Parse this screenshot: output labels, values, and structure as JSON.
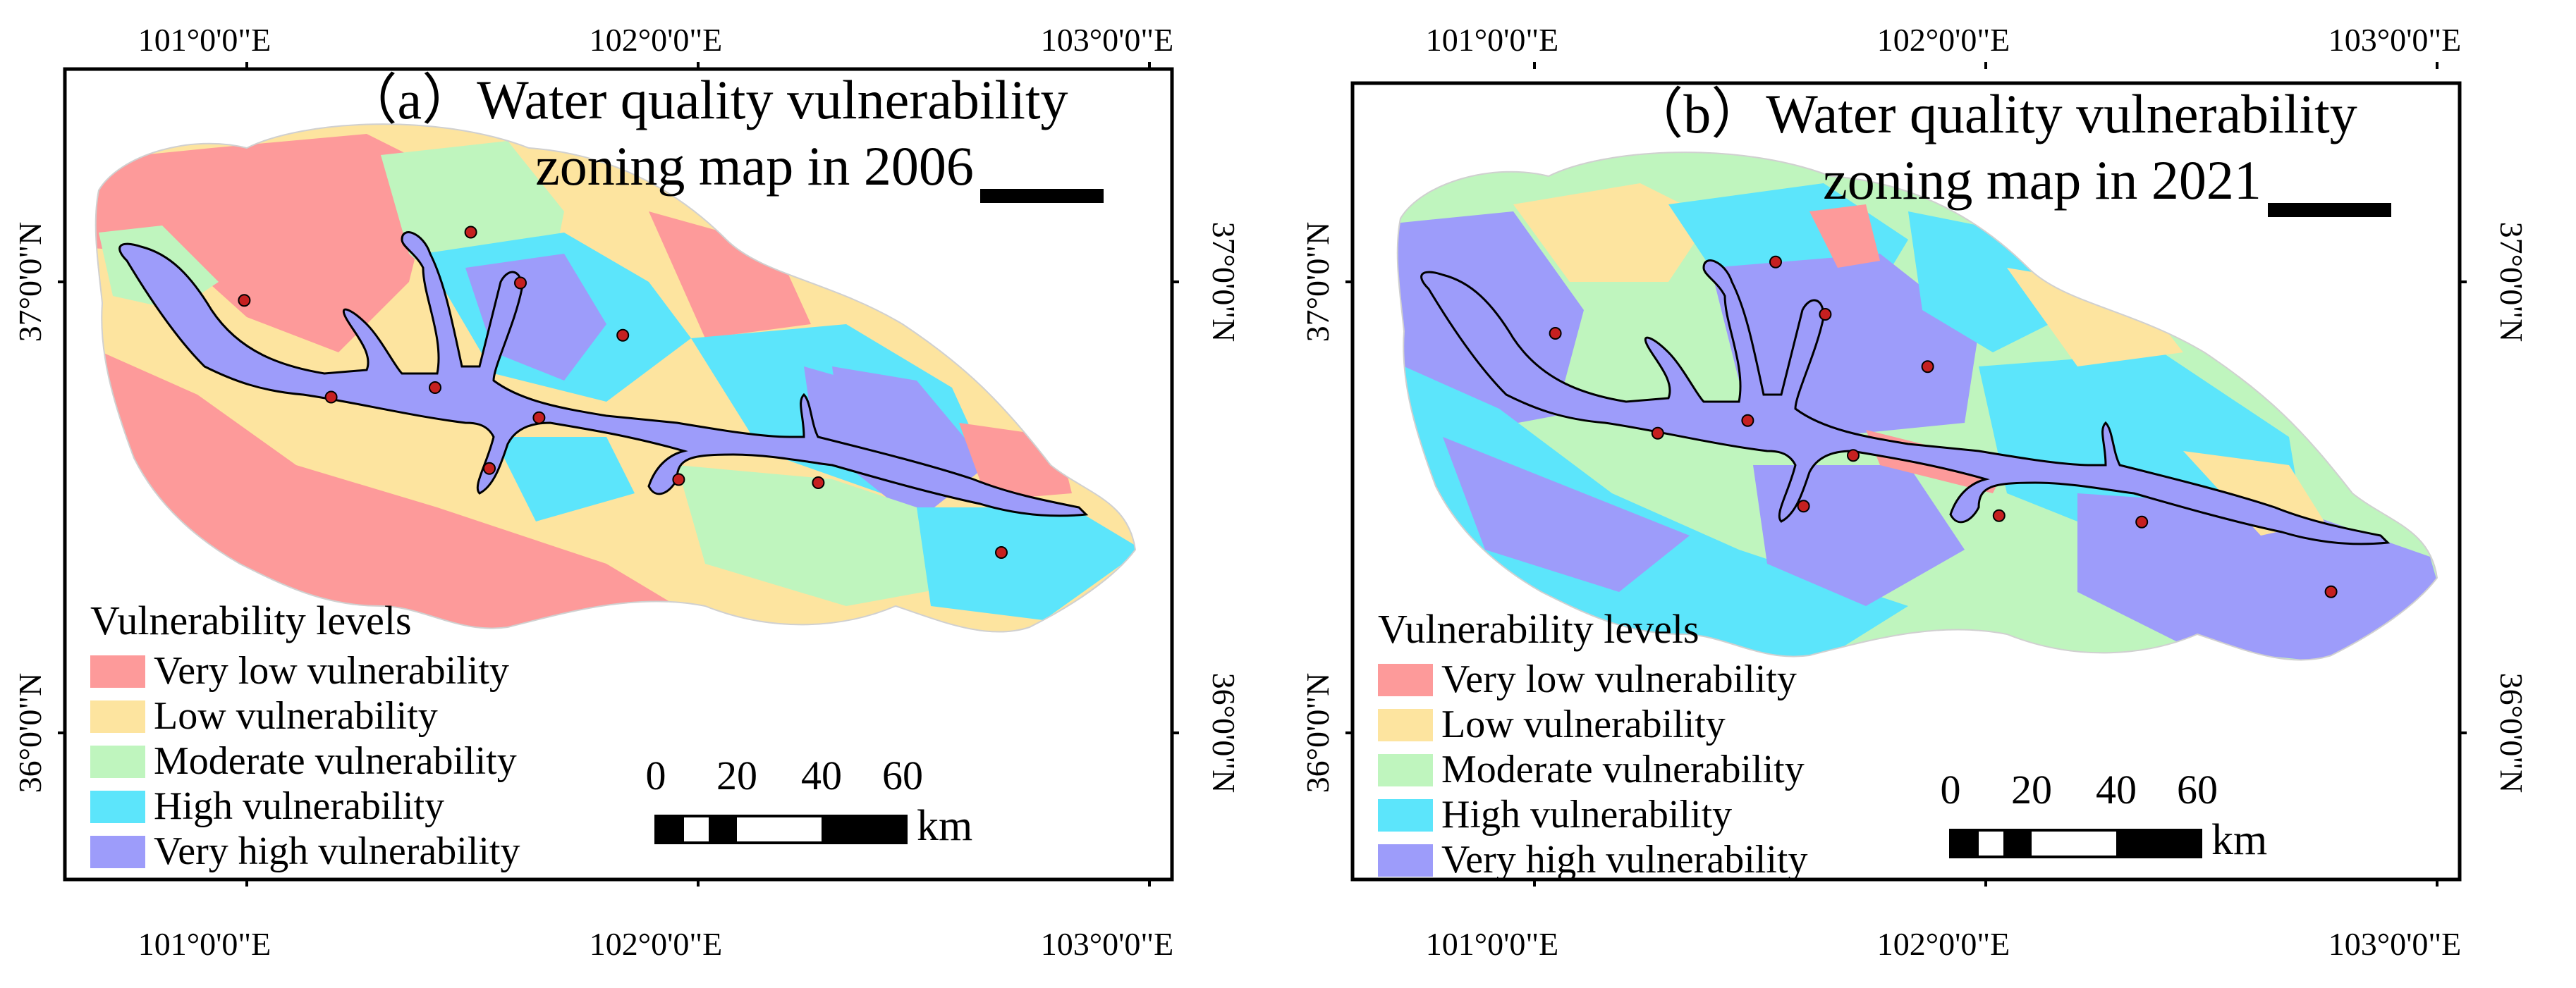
{
  "colors": {
    "very_low": "#fd9a9a",
    "low": "#fde49f",
    "moderate": "#bff5be",
    "high": "#5ce5fb",
    "very_high": "#9d9cfa",
    "river_fill": "#9d9cfa",
    "station": "#c62020",
    "frame": "#000000"
  },
  "panels": [
    {
      "id": "a",
      "title_line1": "（a）Water quality vulnerability",
      "title_line2": "zoning map in 2006",
      "lon_top": [
        "101°0'0\"E",
        "102°0'0\"E",
        "103°0'0\"E"
      ],
      "lon_bottom": [
        "101°0'0\"E",
        "102°0'0\"E",
        "103°0'0\"E"
      ],
      "lat_left": [
        "37°0'0\"N",
        "36°0'0\"N"
      ],
      "lat_right": [
        "37°0'0\"N",
        "36°0'0\"N"
      ],
      "legend_title": "Vulnerability levels",
      "legend_items": [
        {
          "key": "very_low",
          "label": "Very low vulnerability"
        },
        {
          "key": "low",
          "label": "Low vulnerability"
        },
        {
          "key": "moderate",
          "label": "Moderate vulnerability"
        },
        {
          "key": "high",
          "label": "High vulnerability"
        },
        {
          "key": "very_high",
          "label": "Very high vulnerability"
        }
      ],
      "scale_ticks": [
        "0",
        "20",
        "40",
        "60"
      ],
      "scale_unit": "km"
    },
    {
      "id": "b",
      "title_line1": "（b）Water quality vulnerability",
      "title_line2": "zoning map in 2021",
      "lon_top": [
        "101°0'0\"E",
        "102°0'0\"E",
        "103°0'0\"E"
      ],
      "lon_bottom": [
        "101°0'0\"E",
        "102°0'0\"E",
        "103°0'0\"E"
      ],
      "lat_left": [
        "37°0'0\"N",
        "36°0'0\"N"
      ],
      "lat_right": [
        "37°0'0\"N",
        "36°0'0\"N"
      ],
      "legend_title": "Vulnerability levels",
      "legend_items": [
        {
          "key": "very_low",
          "label": "Very low vulnerability"
        },
        {
          "key": "low",
          "label": "Low vulnerability"
        },
        {
          "key": "moderate",
          "label": "Moderate vulnerability"
        },
        {
          "key": "high",
          "label": "High vulnerability"
        },
        {
          "key": "very_high",
          "label": "Very high vulnerability"
        }
      ],
      "scale_ticks": [
        "0",
        "20",
        "40",
        "60"
      ],
      "scale_unit": "km"
    }
  ]
}
